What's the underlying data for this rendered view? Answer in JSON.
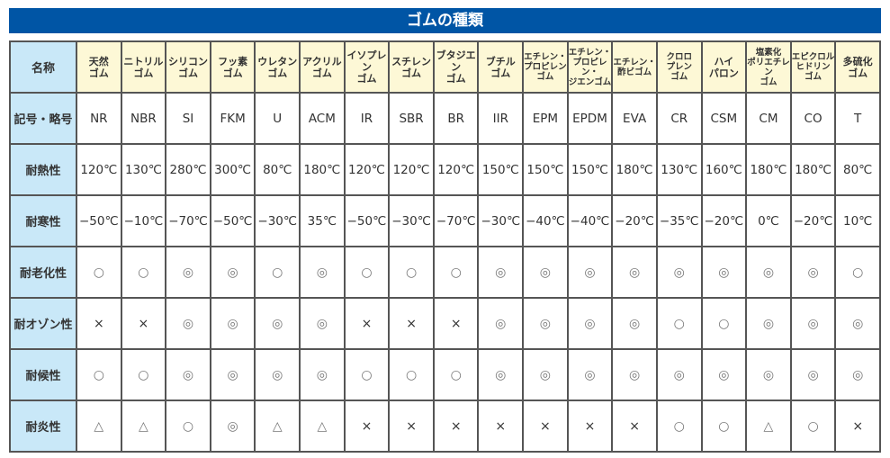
{
  "title": "ゴムの種類",
  "row_headers": {
    "name": "名称",
    "code": "記号・略号",
    "heat": "耐熱性",
    "cold": "耐寒性",
    "aging": "耐老化性",
    "ozone": "耐オゾン性",
    "weather": "耐候性",
    "flame": "耐炎性"
  },
  "rubbers": [
    {
      "name": "天然\nゴム",
      "code": "NR",
      "heat": "120℃",
      "cold": "−50℃",
      "aging": "○",
      "ozone": "×",
      "weather": "○",
      "flame": "△"
    },
    {
      "name": "ニトリル\nゴム",
      "code": "NBR",
      "heat": "130℃",
      "cold": "−10℃",
      "aging": "○",
      "ozone": "×",
      "weather": "○",
      "flame": "△"
    },
    {
      "name": "シリコン\nゴム",
      "code": "SI",
      "heat": "280℃",
      "cold": "−70℃",
      "aging": "◎",
      "ozone": "◎",
      "weather": "◎",
      "flame": "○"
    },
    {
      "name": "フッ素\nゴム",
      "code": "FKM",
      "heat": "300℃",
      "cold": "−50℃",
      "aging": "◎",
      "ozone": "◎",
      "weather": "◎",
      "flame": "◎"
    },
    {
      "name": "ウレタン\nゴム",
      "code": "U",
      "heat": "80℃",
      "cold": "−30℃",
      "aging": "○",
      "ozone": "◎",
      "weather": "◎",
      "flame": "△"
    },
    {
      "name": "アクリル\nゴム",
      "code": "ACM",
      "heat": "180℃",
      "cold": "35℃",
      "aging": "◎",
      "ozone": "◎",
      "weather": "◎",
      "flame": "△"
    },
    {
      "name": "イソプレン\nゴム",
      "code": "IR",
      "heat": "120℃",
      "cold": "−50℃",
      "aging": "○",
      "ozone": "×",
      "weather": "○",
      "flame": "×"
    },
    {
      "name": "スチレン\nゴム",
      "code": "SBR",
      "heat": "120℃",
      "cold": "−30℃",
      "aging": "○",
      "ozone": "×",
      "weather": "○",
      "flame": "×"
    },
    {
      "name": "ブタジエン\nゴム",
      "code": "BR",
      "heat": "120℃",
      "cold": "−70℃",
      "aging": "○",
      "ozone": "×",
      "weather": "○",
      "flame": "×"
    },
    {
      "name": "ブチル\nゴム",
      "code": "IIR",
      "heat": "150℃",
      "cold": "−30℃",
      "aging": "◎",
      "ozone": "◎",
      "weather": "◎",
      "flame": "×"
    },
    {
      "name": "エチレン・\nプロピレン\nゴム",
      "code": "EPM",
      "heat": "150℃",
      "cold": "−40℃",
      "aging": "◎",
      "ozone": "◎",
      "weather": "◎",
      "flame": "×"
    },
    {
      "name": "エチレン・\nプロピレン・\nジエンゴム",
      "code": "EPDM",
      "heat": "150℃",
      "cold": "−40℃",
      "aging": "◎",
      "ozone": "◎",
      "weather": "◎",
      "flame": "×"
    },
    {
      "name": "エチレン・\n酢ビゴム",
      "code": "EVA",
      "heat": "180℃",
      "cold": "−20℃",
      "aging": "◎",
      "ozone": "◎",
      "weather": "◎",
      "flame": "×"
    },
    {
      "name": "クロロ\nプレン\nゴム",
      "code": "CR",
      "heat": "130℃",
      "cold": "−35℃",
      "aging": "◎",
      "ozone": "○",
      "weather": "◎",
      "flame": "○"
    },
    {
      "name": "ハイ\nパロン",
      "code": "CSM",
      "heat": "160℃",
      "cold": "−20℃",
      "aging": "◎",
      "ozone": "○",
      "weather": "◎",
      "flame": "○"
    },
    {
      "name": "塩素化\nポリエチレン\nゴム",
      "code": "CM",
      "heat": "180℃",
      "cold": "0℃",
      "aging": "◎",
      "ozone": "◎",
      "weather": "◎",
      "flame": "△"
    },
    {
      "name": "エピクロル\nヒドリン\nゴム",
      "code": "CO",
      "heat": "180℃",
      "cold": "−20℃",
      "aging": "◎",
      "ozone": "◎",
      "weather": "◎",
      "flame": "○"
    },
    {
      "name": "多硫化\nゴム",
      "code": "T",
      "heat": "80℃",
      "cold": "10℃",
      "aging": "○",
      "ozone": "◎",
      "weather": "◎",
      "flame": "×"
    }
  ]
}
